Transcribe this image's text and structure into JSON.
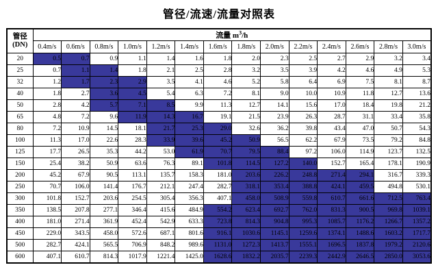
{
  "title": "管径/流速/流量对照表",
  "table": {
    "pipe_header_line1": "管径",
    "pipe_header_line2": "(DN)",
    "flow_header_prefix": "流量 m",
    "flow_header_sup": "3",
    "flow_header_suffix": "/h",
    "velocity_headers": [
      "0.4m/s",
      "0.6m/s",
      "0.8m/s",
      "1.0m/s",
      "1.2m/s",
      "1.4m/s",
      "1.6m/s",
      "1.8m/s",
      "2.0m/s",
      "2.2m/s",
      "2.4m/s",
      "2.6m/s",
      "2.8m/s",
      "3.0m/s"
    ],
    "rows": [
      {
        "dn": "20",
        "values": [
          "0.5",
          "0.7",
          "0.9",
          "1.1",
          "1.4",
          "1.6",
          "1.8",
          "2.0",
          "2.3",
          "2.5",
          "2.7",
          "2.9",
          "3.2",
          "3.4"
        ],
        "highlight": [
          0,
          1
        ]
      },
      {
        "dn": "25",
        "values": [
          "0.7",
          "1.1",
          "1.4",
          "1.8",
          "2.1",
          "2.5",
          "2.8",
          "3.2",
          "3.5",
          "3.9",
          "4.2",
          "4.6",
          "4.9",
          "5.3"
        ],
        "highlight": [
          1,
          2
        ]
      },
      {
        "dn": "32",
        "values": [
          "1.2",
          "1.7",
          "2.3",
          "2.9",
          "3.5",
          "4.1",
          "4.6",
          "5.2",
          "5.8",
          "6.4",
          "6.9",
          "7.5",
          "8.1",
          "8.7"
        ],
        "highlight": [
          1,
          3
        ]
      },
      {
        "dn": "40",
        "values": [
          "1.8",
          "2.7",
          "3.6",
          "4.5",
          "5.4",
          "6.3",
          "7.2",
          "8.1",
          "9.0",
          "10.0",
          "10.9",
          "11.8",
          "12.7",
          "13.6"
        ],
        "highlight": [
          2,
          3
        ]
      },
      {
        "dn": "50",
        "values": [
          "2.8",
          "4.2",
          "5.7",
          "7.1",
          "8.5",
          "9.9",
          "11.3",
          "12.7",
          "14.1",
          "15.6",
          "17.0",
          "18.4",
          "19.8",
          "21.2"
        ],
        "highlight": [
          2,
          4
        ]
      },
      {
        "dn": "65",
        "values": [
          "4.8",
          "7.2",
          "9.6",
          "11.9",
          "14.3",
          "16.7",
          "19.1",
          "21.5",
          "23.9",
          "26.3",
          "28.7",
          "31.1",
          "33.4",
          "35.8"
        ],
        "highlight": [
          3,
          5
        ]
      },
      {
        "dn": "80",
        "values": [
          "7.2",
          "10.9",
          "14.5",
          "18.1",
          "21.7",
          "25.3",
          "29.0",
          "32.6",
          "36.2",
          "39.8",
          "43.4",
          "47.0",
          "50.7",
          "54.3"
        ],
        "highlight": [
          4,
          6
        ]
      },
      {
        "dn": "100",
        "values": [
          "11.3",
          "17.0",
          "22.6",
          "28.3",
          "33.9",
          "39.6",
          "45.2",
          "50.9",
          "56.5",
          "62.2",
          "67.9",
          "73.5",
          "79.2",
          "84.8"
        ],
        "highlight": [
          4,
          7
        ]
      },
      {
        "dn": "125",
        "values": [
          "17.7",
          "26.5",
          "35.3",
          "44.2",
          "53.0",
          "61.9",
          "70.7",
          "79.5",
          "88.4",
          "97.2",
          "106.0",
          "114.9",
          "123.7",
          "132.5"
        ],
        "highlight": [
          5,
          8
        ]
      },
      {
        "dn": "150",
        "values": [
          "25.4",
          "38.2",
          "50.9",
          "63.6",
          "76.3",
          "89.1",
          "101.8",
          "114.5",
          "127.2",
          "140.0",
          "152.7",
          "165.4",
          "178.1",
          "190.9"
        ],
        "highlight": [
          6,
          9
        ]
      },
      {
        "dn": "200",
        "values": [
          "45.2",
          "67.9",
          "90.5",
          "113.1",
          "135.7",
          "158.3",
          "181.0",
          "203.6",
          "226.2",
          "248.8",
          "271.4",
          "294.1",
          "316.7",
          "339.3"
        ],
        "highlight": [
          7,
          11
        ]
      },
      {
        "dn": "250",
        "values": [
          "70.7",
          "106.0",
          "141.4",
          "176.7",
          "212.1",
          "247.4",
          "282.7",
          "318.1",
          "353.4",
          "388.8",
          "424.1",
          "459.5",
          "494.8",
          "530.1"
        ],
        "highlight": [
          7,
          11
        ]
      },
      {
        "dn": "300",
        "values": [
          "101.8",
          "152.7",
          "203.6",
          "254.5",
          "305.4",
          "356.3",
          "407.1",
          "458.0",
          "508.9",
          "559.8",
          "610.7",
          "661.6",
          "712.5",
          "763.4"
        ],
        "highlight": [
          7,
          13
        ]
      },
      {
        "dn": "350",
        "values": [
          "138.5",
          "207.8",
          "277.1",
          "346.4",
          "415.6",
          "484.9",
          "554.2",
          "623.4",
          "692.7",
          "762.0",
          "831.3",
          "900.5",
          "969.8",
          "1039.1"
        ],
        "highlight": [
          6,
          13
        ]
      },
      {
        "dn": "400",
        "values": [
          "181.0",
          "271.4",
          "361.9",
          "452.4",
          "542.9",
          "633.3",
          "723.8",
          "814.3",
          "904.8",
          "995.3",
          "1085.7",
          "1176.2",
          "1266.7",
          "1357.2"
        ],
        "highlight": [
          6,
          13
        ]
      },
      {
        "dn": "450",
        "values": [
          "229.0",
          "343.5",
          "458.0",
          "572.6",
          "687.1",
          "801.6",
          "916.1",
          "1030.6",
          "1145.1",
          "1259.6",
          "1374.1",
          "1488.6",
          "1603.2",
          "1717.7"
        ],
        "highlight": [
          6,
          13
        ]
      },
      {
        "dn": "500",
        "values": [
          "282.7",
          "424.1",
          "565.5",
          "706.9",
          "848.2",
          "989.6",
          "1131.0",
          "1272.3",
          "1413.7",
          "1555.1",
          "1696.5",
          "1837.8",
          "1979.2",
          "2120.6"
        ],
        "highlight": [
          6,
          13
        ]
      },
      {
        "dn": "600",
        "values": [
          "407.1",
          "610.7",
          "814.3",
          "1017.9",
          "1221.4",
          "1425.0",
          "1628.6",
          "1832.2",
          "2035.7",
          "2239.3",
          "2442.9",
          "2646.5",
          "2850.0",
          "3053.6"
        ],
        "highlight": [
          6,
          13
        ]
      }
    ]
  },
  "colors": {
    "highlight_bg": "#39399B",
    "highlight_text": "#000000",
    "border": "#000000"
  }
}
